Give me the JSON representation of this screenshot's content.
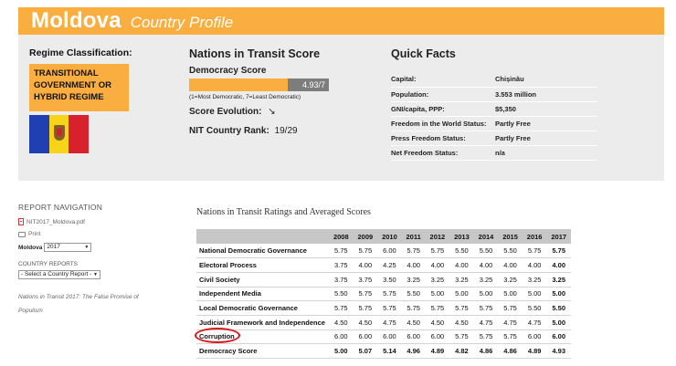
{
  "header": {
    "country": "Moldova",
    "subtitle": "Country Profile"
  },
  "regime": {
    "label": "Regime Classification:",
    "value": "TRANSITIONAL GOVERNMENT OR HYBRID REGIME"
  },
  "nit": {
    "title": "Nations in Transit Score",
    "democracy_label": "Democracy Score",
    "democracy_score": "4.93/7",
    "democracy_score_fraction": 0.703,
    "scale_note": "(1=Most Democratic, 7=Least Democratic)",
    "evolution_label": "Score Evolution:",
    "evolution_arrow": "↘",
    "rank_label": "NIT Country Rank:",
    "rank_value": "19/29"
  },
  "quick_facts": {
    "title": "Quick Facts",
    "rows": [
      {
        "key": "Capital:",
        "value": "Chișinău"
      },
      {
        "key": "Population:",
        "value": "3.553 million"
      },
      {
        "key": "GNI/capita, PPP:",
        "value": "$5,350"
      },
      {
        "key": "Freedom in the World Status:",
        "value": "Partly Free"
      },
      {
        "key": "Press Freedom Status:",
        "value": "Partly Free"
      },
      {
        "key": "Net Freedom Status:",
        "value": "n/a"
      }
    ]
  },
  "nav": {
    "heading": "REPORT NAVIGATION",
    "pdf_link": "NIT2017_Moldova.pdf",
    "print_label": "Print",
    "country_label": "Moldova",
    "year_selected": "2017",
    "country_reports_heading": "COUNTRY REPORTS",
    "report_select": "- Select a Country Report -",
    "note": "Nations in Transit 2017: The False Promise of Populism"
  },
  "ratings": {
    "title": "Nations in Transit Ratings and Averaged Scores",
    "years": [
      "2008",
      "2009",
      "2010",
      "2011",
      "2012",
      "2013",
      "2014",
      "2015",
      "2016",
      "2017"
    ],
    "rows": [
      {
        "category": "National Democratic Governance",
        "values": [
          "5.75",
          "5.75",
          "6.00",
          "5.75",
          "5.75",
          "5.50",
          "5.50",
          "5.50",
          "5.75",
          "5.75"
        ]
      },
      {
        "category": "Electoral Process",
        "values": [
          "3.75",
          "4.00",
          "4.25",
          "4.00",
          "4.00",
          "4.00",
          "4.00",
          "4.00",
          "4.00",
          "4.00"
        ]
      },
      {
        "category": "Civil Society",
        "values": [
          "3.75",
          "3.75",
          "3.50",
          "3.25",
          "3.25",
          "3.25",
          "3.25",
          "3.25",
          "3.25",
          "3.25"
        ]
      },
      {
        "category": "Independent Media",
        "values": [
          "5.50",
          "5.75",
          "5.75",
          "5.50",
          "5.00",
          "5.00",
          "5.00",
          "5.00",
          "5.00",
          "5.00"
        ]
      },
      {
        "category": "Local Democratic Governance",
        "values": [
          "5.75",
          "5.75",
          "5.75",
          "5.75",
          "5.75",
          "5.75",
          "5.75",
          "5.75",
          "5.50",
          "5.50"
        ]
      },
      {
        "category": "Judicial Framework and Independence",
        "values": [
          "4.50",
          "4.50",
          "4.75",
          "4.50",
          "4.50",
          "4.50",
          "4.75",
          "4.75",
          "4.75",
          "5.00"
        ]
      },
      {
        "category": "Corruption",
        "values": [
          "6.00",
          "6.00",
          "6.00",
          "6.00",
          "6.00",
          "5.75",
          "5.75",
          "5.75",
          "6.00",
          "6.00"
        ]
      }
    ],
    "total": {
      "category": "Democracy Score",
      "values": [
        "5.00",
        "5.07",
        "5.14",
        "4.96",
        "4.89",
        "4.82",
        "4.86",
        "4.86",
        "4.89",
        "4.93"
      ]
    }
  },
  "colors": {
    "accent": "#f9ae3f",
    "panel": "#ececec",
    "highlight": "#d8181d"
  }
}
